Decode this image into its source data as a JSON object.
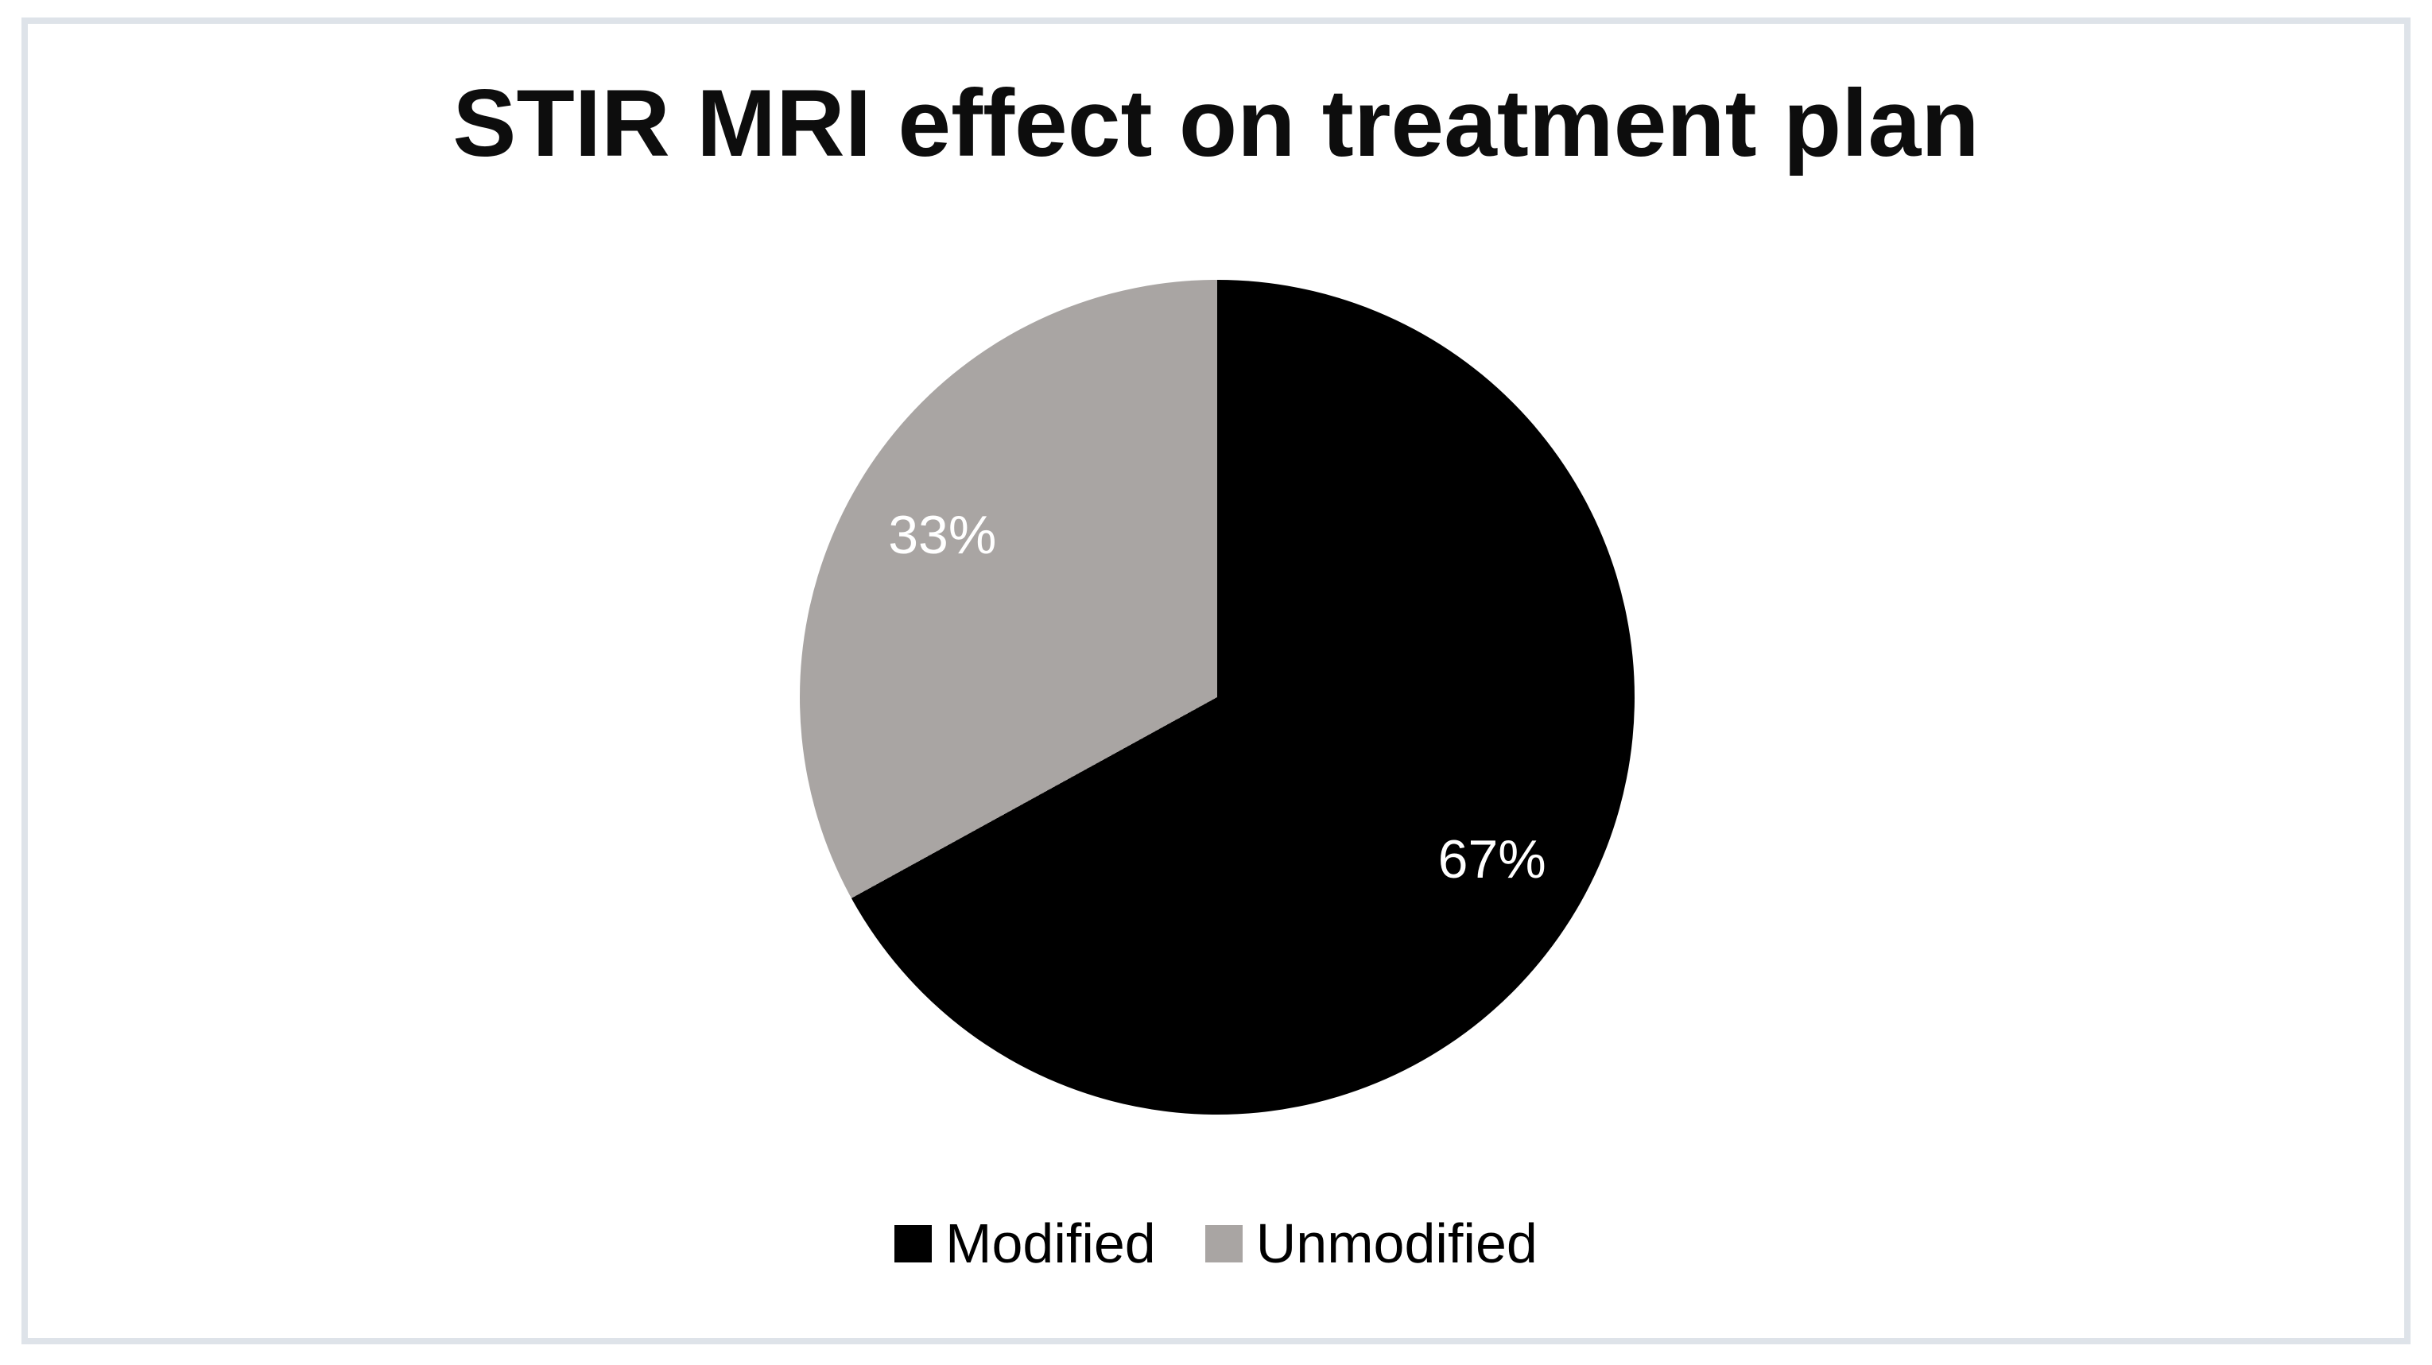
{
  "frame": {
    "border_color": "#dee3e9",
    "background_color": "#ffffff"
  },
  "chart_data": {
    "type": "pie",
    "title": "STIR MRI effect on treatment plan",
    "start_angle_deg": 0,
    "direction": "clockwise",
    "legend_position": "bottom",
    "label_radius_ratio": 0.765,
    "slices": [
      {
        "name": "Modified",
        "value": 67,
        "label": "67%",
        "color": "#000000",
        "label_color": "#ffffff"
      },
      {
        "name": "Unmodified",
        "value": 33,
        "label": "33%",
        "color": "#a9a5a3",
        "label_color": "#ffffff"
      }
    ]
  }
}
